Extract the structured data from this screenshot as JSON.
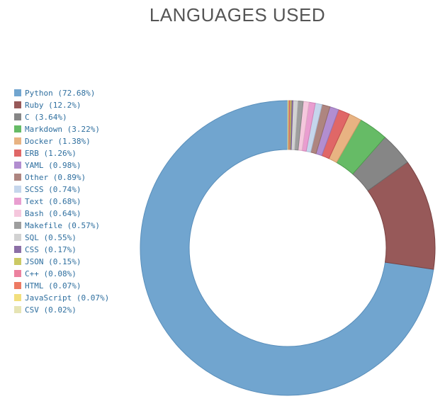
{
  "chart_data": {
    "type": "pie",
    "variant": "donut",
    "title": "LANGUAGES USED",
    "legend_position": "left",
    "slices": [
      {
        "label": "Python (72.68%)",
        "name": "Python",
        "value": 72.68,
        "color": "#71a5cf",
        "stroke": "#5a8fbb"
      },
      {
        "label": "Ruby (12.2%)",
        "name": "Ruby",
        "value": 12.2,
        "color": "#975959",
        "stroke": "#7a4242"
      },
      {
        "label": "C (3.64%)",
        "name": "C",
        "value": 3.64,
        "color": "#868686",
        "stroke": "#6d6d6d"
      },
      {
        "label": "Markdown (3.22%)",
        "name": "Markdown",
        "value": 3.22,
        "color": "#66bb66",
        "stroke": "#4e9d4e"
      },
      {
        "label": "Docker (1.38%)",
        "name": "Docker",
        "value": 1.38,
        "color": "#e8b382",
        "stroke": "#cf9a69"
      },
      {
        "label": "ERB (1.26%)",
        "name": "ERB",
        "value": 1.26,
        "color": "#e06767",
        "stroke": "#c54f4f"
      },
      {
        "label": "YAML (0.98%)",
        "name": "YAML",
        "value": 0.98,
        "color": "#b28ed0",
        "stroke": "#9675b4"
      },
      {
        "label": "Other (0.89%)",
        "name": "Other",
        "value": 0.89,
        "color": "#ae8580",
        "stroke": "#936b66"
      },
      {
        "label": "SCSS (0.74%)",
        "name": "SCSS",
        "value": 0.74,
        "color": "#c5d6ec",
        "stroke": "#a9bcd4"
      },
      {
        "label": "Text (0.68%)",
        "name": "Text",
        "value": 0.68,
        "color": "#e99ed0",
        "stroke": "#d083b6"
      },
      {
        "label": "Bash (0.64%)",
        "name": "Bash",
        "value": 0.64,
        "color": "#f5c7dd",
        "stroke": "#dcaec4"
      },
      {
        "label": "Makefile (0.57%)",
        "name": "Makefile",
        "value": 0.57,
        "color": "#9e9e9e",
        "stroke": "#858585"
      },
      {
        "label": "SQL (0.55%)",
        "name": "SQL",
        "value": 0.55,
        "color": "#d2d2d2",
        "stroke": "#b8b8b8"
      },
      {
        "label": "CSS (0.17%)",
        "name": "CSS",
        "value": 0.17,
        "color": "#8c6fa6",
        "stroke": "#735790"
      },
      {
        "label": "JSON (0.15%)",
        "name": "JSON",
        "value": 0.15,
        "color": "#cbc964",
        "stroke": "#b0ae4c"
      },
      {
        "label": "C++ (0.08%)",
        "name": "C++",
        "value": 0.08,
        "color": "#ec829f",
        "stroke": "#d26986"
      },
      {
        "label": "HTML (0.07%)",
        "name": "HTML",
        "value": 0.07,
        "color": "#ed7a63",
        "stroke": "#d3624b"
      },
      {
        "label": "JavaScript (0.07%)",
        "name": "JavaScript",
        "value": 0.07,
        "color": "#f2df7d",
        "stroke": "#d8c565"
      },
      {
        "label": "CSV (0.02%)",
        "name": "CSV",
        "value": 0.02,
        "color": "#e6e4b4",
        "stroke": "#cccaa0"
      }
    ]
  }
}
